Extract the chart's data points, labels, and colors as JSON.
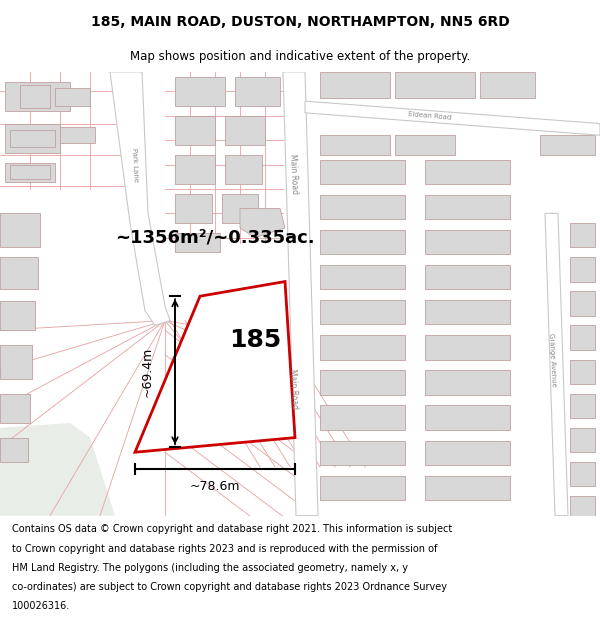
{
  "title": "185, MAIN ROAD, DUSTON, NORTHAMPTON, NN5 6RD",
  "subtitle": "Map shows position and indicative extent of the property.",
  "footer_lines": [
    "Contains OS data © Crown copyright and database right 2021. This information is subject",
    "to Crown copyright and database rights 2023 and is reproduced with the permission of",
    "HM Land Registry. The polygons (including the associated geometry, namely x, y",
    "co-ordinates) are subject to Crown copyright and database rights 2023 Ordnance Survey",
    "100026316."
  ],
  "map_bg": "#f8f8f8",
  "road_bg": "#f0f0f0",
  "street_color": "#e8a0a0",
  "road_edge_color": "#c8c8c8",
  "highlight_color": "#cc0000",
  "building_fill": "#d8d8d8",
  "building_stroke": "#c0a0a0",
  "area_text": "~1356m²/~0.335ac.",
  "label_185": "185",
  "dim_width": "~78.6m",
  "dim_height": "~69.4m",
  "green_area": "#e8ede8",
  "title_fontsize": 10,
  "subtitle_fontsize": 8.5,
  "footer_fontsize": 7
}
